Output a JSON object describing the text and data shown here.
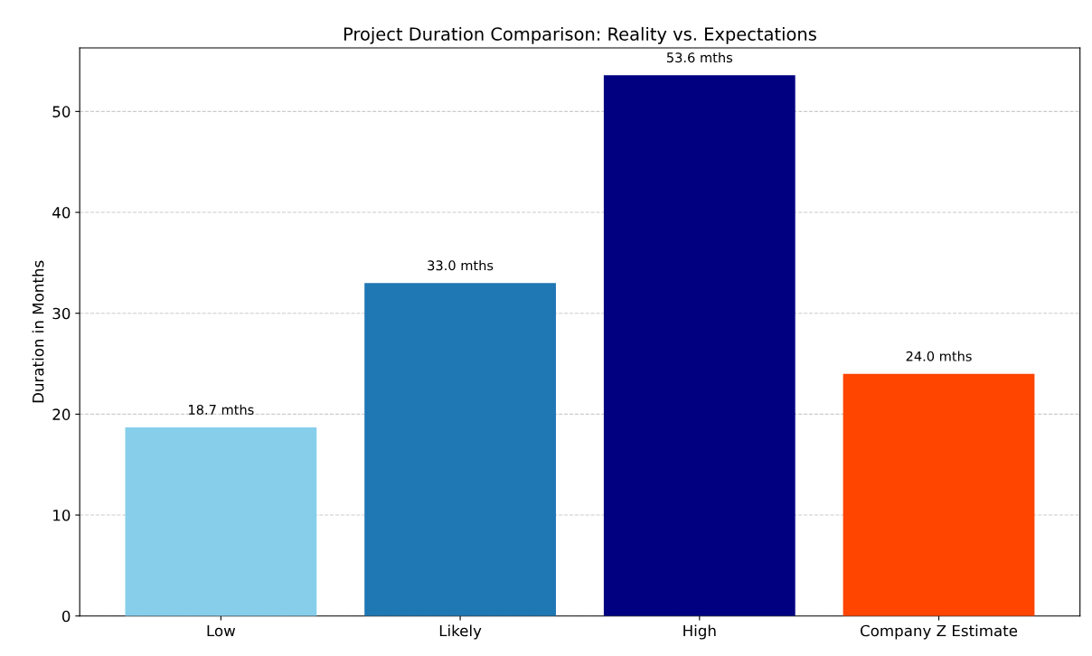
{
  "chart_data": {
    "type": "bar",
    "title": "Project Duration Comparison: Reality vs. Expectations",
    "ylabel": "Duration in Months",
    "categories": [
      "Low",
      "Likely",
      "High",
      "Company Z Estimate"
    ],
    "values": [
      18.7,
      33.0,
      53.6,
      24.0
    ],
    "colors": [
      "#87ceeb",
      "#1f77b4",
      "#000080",
      "#ff4500"
    ],
    "value_labels": [
      "18.7 mths",
      "33.0 mths",
      "53.6 mths",
      "24.0 mths"
    ],
    "ylim": [
      0,
      56.3
    ],
    "yticks": [
      0,
      10,
      20,
      30,
      40,
      50
    ],
    "grid": "y",
    "line_style": "dashed"
  }
}
